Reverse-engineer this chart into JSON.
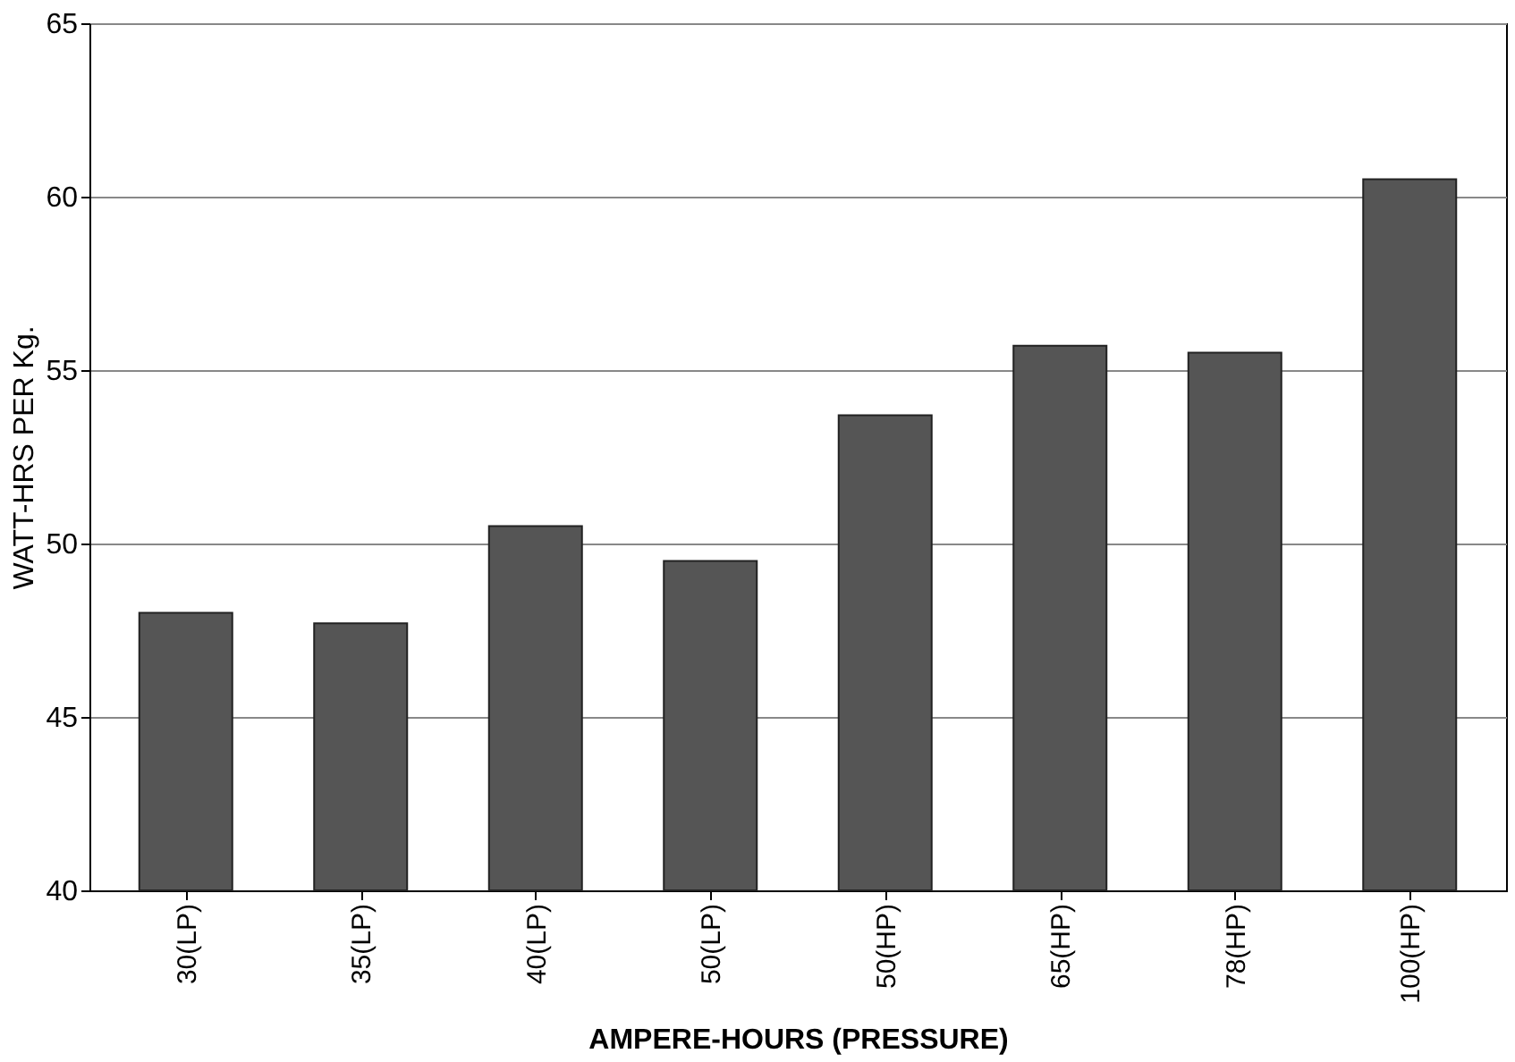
{
  "chart_data": {
    "type": "bar",
    "xlabel": "AMPERE-HOURS (PRESSURE)",
    "ylabel": "WATT-HRS PER Kg.",
    "categories": [
      "30(LP)",
      "35(LP)",
      "40(LP)",
      "50(LP)",
      "50(HP)",
      "65(HP)",
      "78(HP)",
      "100(HP)"
    ],
    "values": [
      48.0,
      47.7,
      50.5,
      49.5,
      53.7,
      55.7,
      55.5,
      60.5
    ],
    "color": "#555555",
    "ylim": [
      40,
      65
    ],
    "yticks": [
      40,
      45,
      50,
      55,
      60,
      65
    ],
    "grid": "y"
  }
}
